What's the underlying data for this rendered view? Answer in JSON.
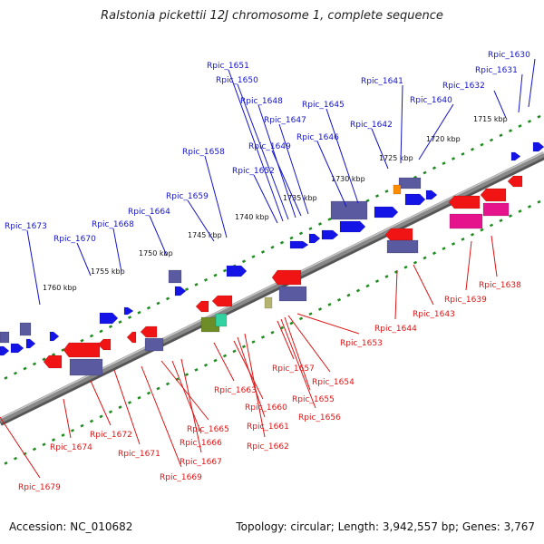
{
  "title": "Ralstonia pickettii 12J chromosome 1, complete sequence",
  "footer": {
    "accession": "Accession: NC_010682",
    "summary": "Topology: circular; Length: 3,942,557 bp; Genes: 3,767"
  },
  "colors": {
    "backbone": "#888888",
    "tick": "#1e8c1e",
    "forward_gene": "#1414e6",
    "forward_label": "#1414c8",
    "reverse_gene": "#f01414",
    "reverse_label": "#dc1414",
    "operon_purple": "#5a5aa0",
    "operon_pink": "#e6148c",
    "operon_olive": "#6e8c28",
    "operon_teal": "#32d2a0",
    "operon_khaki": "#b4b46e",
    "misc_orange": "#ff8c00"
  },
  "scale_labels": [
    "1715 kbp",
    "1720 kbp",
    "1725 kbp",
    "1730 kbp",
    "1735 kbp",
    "1740 kbp",
    "1745 kbp",
    "1750 kbp",
    "1755 kbp",
    "1760 kbp"
  ],
  "top_labels": [
    "Rpic_1630",
    "Rpic_1631",
    "Rpic_1632",
    "Rpic_1640",
    "Rpic_1641",
    "Rpic_1642",
    "Rpic_1645",
    "Rpic_1646",
    "Rpic_1647",
    "Rpic_1648",
    "Rpic_1649",
    "Rpic_1650",
    "Rpic_1651",
    "Rpic_1652",
    "Rpic_1658",
    "Rpic_1659",
    "Rpic_1664",
    "Rpic_1668",
    "Rpic_1670",
    "Rpic_1673"
  ],
  "bottom_labels": [
    "Rpic_1638",
    "Rpic_1639",
    "Rpic_1643",
    "Rpic_1644",
    "Rpic_1653",
    "Rpic_1654",
    "Rpic_1655",
    "Rpic_1656",
    "Rpic_1657",
    "Rpic_1660",
    "Rpic_1661",
    "Rpic_1662",
    "Rpic_1663",
    "Rpic_1665",
    "Rpic_1666",
    "Rpic_1667",
    "Rpic_1669",
    "Rpic_1671",
    "Rpic_1672",
    "Rpic_1674",
    "Rpic_1679"
  ]
}
